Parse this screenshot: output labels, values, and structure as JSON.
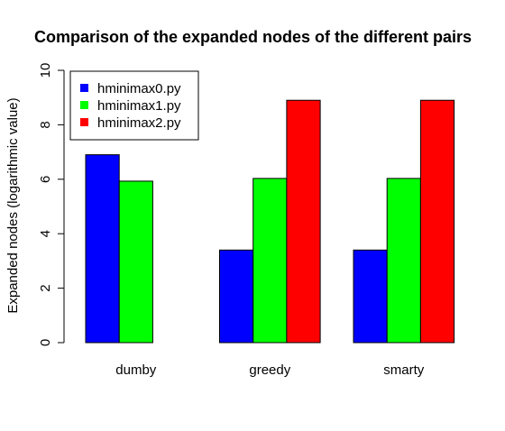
{
  "chart_data": {
    "type": "bar",
    "title": "Comparison of the expanded nodes of the different pairs",
    "xlabel": "",
    "ylabel": "Expanded nodes (logarithmic value)",
    "categories": [
      "dumby",
      "greedy",
      "smarty"
    ],
    "series": [
      {
        "name": "hminimax0.py",
        "color": "#0000ff",
        "values": [
          6.9,
          3.4,
          3.4
        ]
      },
      {
        "name": "hminimax1.py",
        "color": "#00ff00",
        "values": [
          5.93,
          6.03,
          6.03
        ]
      },
      {
        "name": "hminimax2.py",
        "color": "#ff0000",
        "values": [
          null,
          8.9,
          8.9
        ]
      }
    ],
    "ylim": [
      0,
      10
    ],
    "yticks": [
      0,
      2,
      4,
      6,
      8,
      10
    ],
    "grid": false,
    "legend_position": "top-left"
  }
}
